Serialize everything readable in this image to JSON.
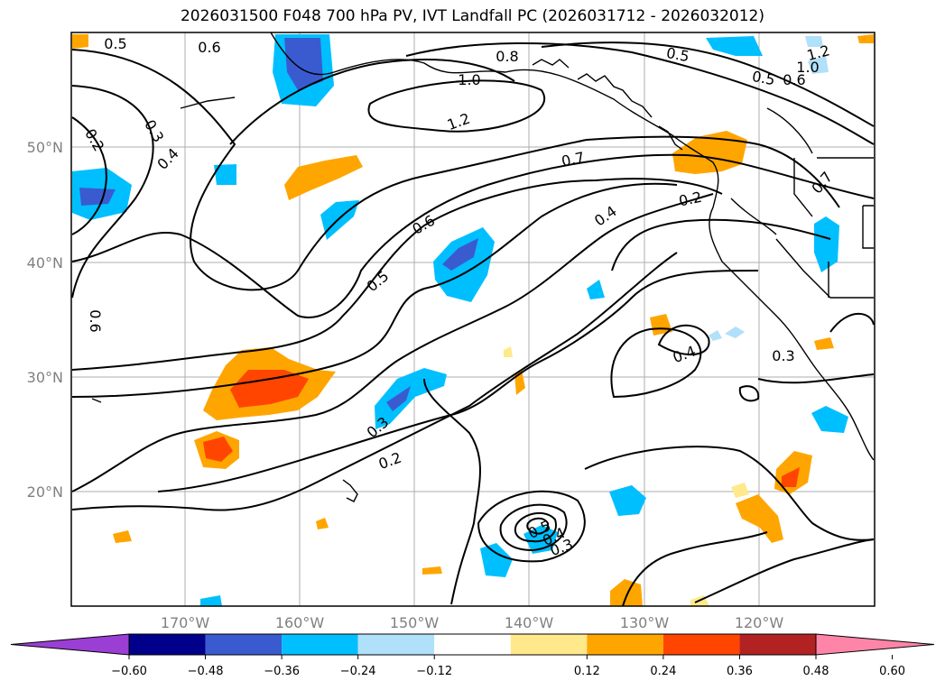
{
  "title": "2026031500 F048 700 hPa PV, IVT Landfall PC (2026031712 - 2026032012)",
  "map": {
    "lon_labels": [
      "170°W",
      "160°W",
      "150°W",
      "140°W",
      "130°W",
      "120°W"
    ],
    "lat_labels": [
      "50°N",
      "40°N",
      "30°N",
      "20°N"
    ],
    "contour_labels": [
      "0.5",
      "0.6",
      "0.8",
      "1.0",
      "1.2",
      "0.5",
      "1.2",
      "0.5",
      "0.6",
      "1.0",
      "0.2",
      "0.3",
      "0.4",
      "0.7",
      "0.2",
      "0.6",
      "0.4",
      "0.5",
      "0.6",
      "0.7",
      "0.3",
      "0.4",
      "0.3",
      "0.2",
      "0.3",
      "0.5",
      "0.4"
    ]
  },
  "colorbar": {
    "ticks": [
      "−0.60",
      "−0.48",
      "−0.36",
      "−0.24",
      "−0.12",
      "0.12",
      "0.24",
      "0.36",
      "0.48",
      "0.60"
    ],
    "colors": [
      "#9b3fd4",
      "#00008b",
      "#3a5bd0",
      "#00bfff",
      "#b0e0fa",
      "#ffffff",
      "#ffe98a",
      "#ffa500",
      "#ff4500",
      "#b22222",
      "#ff85a8"
    ]
  }
}
